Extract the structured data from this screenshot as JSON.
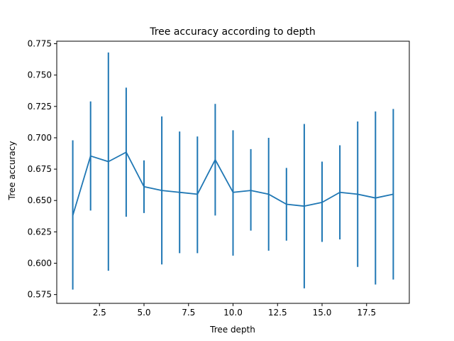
{
  "chart_data": {
    "type": "line",
    "title": "Tree accuracy according to depth",
    "xlabel": "Tree depth",
    "ylabel": "Tree accuracy",
    "xlim": [
      0.1,
      19.9
    ],
    "ylim": [
      0.568,
      0.777
    ],
    "grid": false,
    "line_color": "#1f77b4",
    "x_ticks": [
      {
        "value": 2.5,
        "label": "2.5"
      },
      {
        "value": 5.0,
        "label": "5.0"
      },
      {
        "value": 7.5,
        "label": "7.5"
      },
      {
        "value": 10.0,
        "label": "10.0"
      },
      {
        "value": 12.5,
        "label": "12.5"
      },
      {
        "value": 15.0,
        "label": "15.0"
      },
      {
        "value": 17.5,
        "label": "17.5"
      }
    ],
    "y_ticks": [
      {
        "value": 0.575,
        "label": "0.575"
      },
      {
        "value": 0.6,
        "label": "0.600"
      },
      {
        "value": 0.625,
        "label": "0.625"
      },
      {
        "value": 0.65,
        "label": "0.650"
      },
      {
        "value": 0.675,
        "label": "0.675"
      },
      {
        "value": 0.7,
        "label": "0.700"
      },
      {
        "value": 0.725,
        "label": "0.725"
      },
      {
        "value": 0.75,
        "label": "0.750"
      },
      {
        "value": 0.775,
        "label": "0.775"
      }
    ],
    "x": [
      1,
      2,
      3,
      4,
      5,
      6,
      7,
      8,
      9,
      10,
      11,
      12,
      13,
      14,
      15,
      16,
      17,
      18,
      19
    ],
    "y": [
      0.638,
      0.6855,
      0.681,
      0.6885,
      0.661,
      0.658,
      0.6565,
      0.655,
      0.6825,
      0.6565,
      0.658,
      0.655,
      0.647,
      0.6455,
      0.6485,
      0.6565,
      0.655,
      0.652,
      0.655
    ],
    "err_low": [
      0.579,
      0.642,
      0.594,
      0.637,
      0.64,
      0.599,
      0.608,
      0.608,
      0.638,
      0.606,
      0.626,
      0.61,
      0.618,
      0.58,
      0.617,
      0.619,
      0.597,
      0.583,
      0.587
    ],
    "err_high": [
      0.698,
      0.729,
      0.768,
      0.74,
      0.682,
      0.717,
      0.705,
      0.701,
      0.727,
      0.706,
      0.691,
      0.7,
      0.676,
      0.711,
      0.681,
      0.694,
      0.713,
      0.721,
      0.723
    ]
  }
}
